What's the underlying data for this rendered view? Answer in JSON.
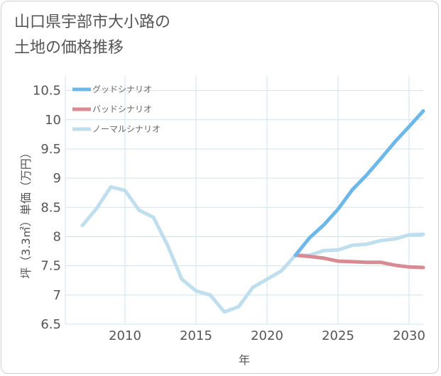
{
  "title_lines": [
    "山口県宇部市大小路の",
    "土地の価格推移"
  ],
  "chart_data": {
    "type": "line",
    "xlabel": "年",
    "ylabel": "坪（3.3㎡）単価（万円）",
    "xlim": [
      2005.8,
      2031
    ],
    "ylim": [
      6.5,
      10.75
    ],
    "x_ticks": [
      2010,
      2015,
      2020,
      2025,
      2030
    ],
    "y_ticks": [
      6.5,
      7,
      7.5,
      8,
      8.5,
      9,
      9.5,
      10,
      10.5
    ],
    "x_tick_labels": [
      "2010",
      "2015",
      "2020",
      "2025",
      "2030"
    ],
    "y_tick_labels": [
      "6.5",
      "7",
      "7.5",
      "8",
      "8.5",
      "9",
      "9.5",
      "10",
      "10.5"
    ],
    "grid": true,
    "legend_position": "top-left",
    "series": [
      {
        "name": "グッドシナリオ",
        "color": "#6db8ea",
        "x": [
          2022,
          2023,
          2024,
          2025,
          2026,
          2027,
          2028,
          2029,
          2030,
          2031
        ],
        "y": [
          7.68,
          7.98,
          8.2,
          8.47,
          8.8,
          9.05,
          9.33,
          9.62,
          9.88,
          10.15
        ]
      },
      {
        "name": "バッドシナリオ",
        "color": "#da8a92",
        "x": [
          2022,
          2023,
          2024,
          2025,
          2026,
          2027,
          2028,
          2029,
          2030,
          2031
        ],
        "y": [
          7.68,
          7.66,
          7.63,
          7.58,
          7.57,
          7.56,
          7.56,
          7.51,
          7.48,
          7.47
        ]
      },
      {
        "name": "ノーマルシナリオ",
        "color": "#c0dfee",
        "x": [
          2007,
          2008,
          2009,
          2010,
          2011,
          2012,
          2013,
          2014,
          2015,
          2016,
          2017,
          2018,
          2019,
          2020,
          2021,
          2022,
          2023,
          2024,
          2025,
          2026,
          2027,
          2028,
          2029,
          2030,
          2031
        ],
        "y": [
          8.19,
          8.48,
          8.85,
          8.79,
          8.45,
          8.33,
          7.85,
          7.27,
          7.07,
          7.0,
          6.71,
          6.8,
          7.13,
          7.27,
          7.41,
          7.68,
          7.68,
          7.76,
          7.77,
          7.85,
          7.87,
          7.93,
          7.96,
          8.03,
          8.04
        ]
      }
    ]
  }
}
